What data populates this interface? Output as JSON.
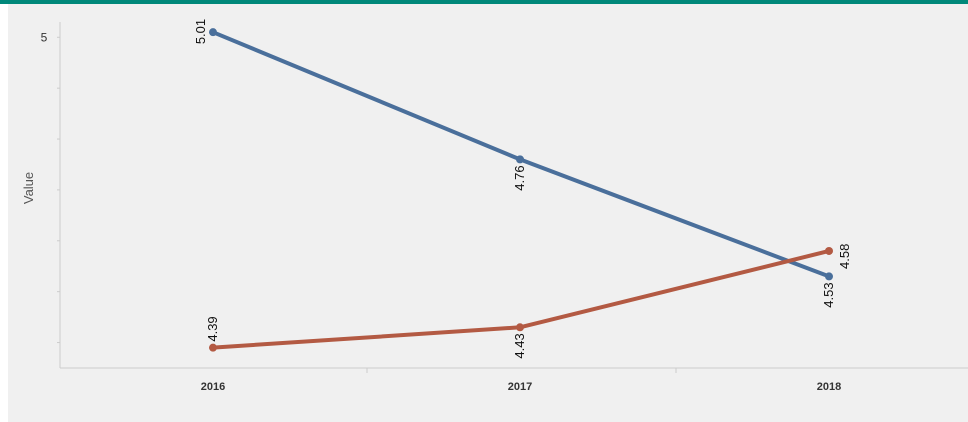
{
  "colors": {
    "accent_bar": "#00887a",
    "panel_bg": "#f0f0f0",
    "series_1": "#4a6f9b",
    "series_2": "#b35a43",
    "axis_line": "#cccccc"
  },
  "chart_data": {
    "type": "line",
    "title": "",
    "xlabel": "",
    "ylabel": "Value",
    "x": [
      "2016",
      "2017",
      "2018"
    ],
    "ylim": [
      4.35,
      5.03
    ],
    "yticks": [
      5
    ],
    "ytick_labels": [
      "5"
    ],
    "grid": false,
    "series": [
      {
        "values": [
          5.01,
          4.76,
          4.53
        ],
        "labels": [
          "5.01",
          "4.76",
          "4.53"
        ],
        "color": "#4a6f9b"
      },
      {
        "values": [
          4.39,
          4.43,
          4.58
        ],
        "labels": [
          "4.39",
          "4.43",
          "4.58"
        ],
        "color": "#b35a43"
      }
    ]
  }
}
